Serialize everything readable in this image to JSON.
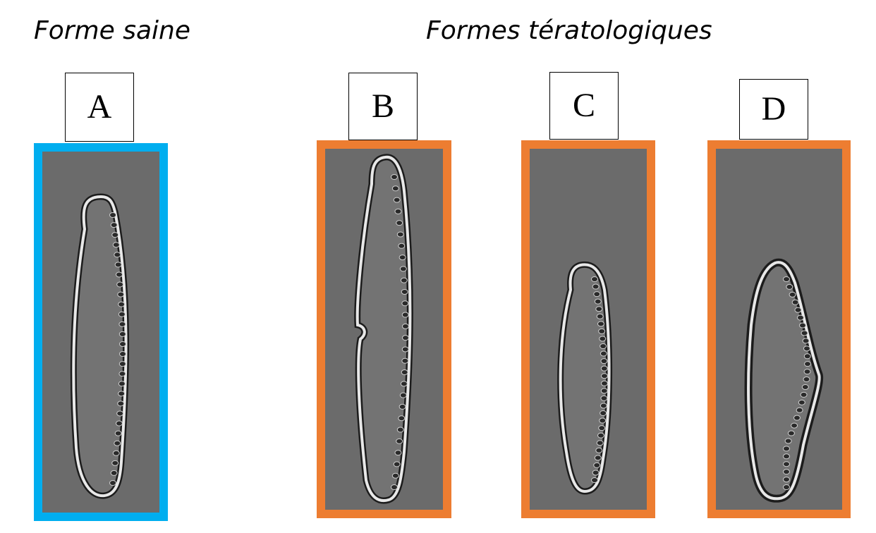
{
  "headings": {
    "healthy": "Forme saine",
    "teratological": "Formes tératologiques"
  },
  "panels": [
    {
      "label": "A",
      "frame_color": "#00AEEF",
      "icon": "healthy-diatom"
    },
    {
      "label": "B",
      "frame_color": "#ED7D31",
      "icon": "teratological-diatom-notched"
    },
    {
      "label": "C",
      "frame_color": "#ED7D31",
      "icon": "teratological-diatom-curved"
    },
    {
      "label": "D",
      "frame_color": "#ED7D31",
      "icon": "teratological-diatom-rhomboid"
    }
  ],
  "colors": {
    "micrograph_background": "#6b6b6b",
    "valve_outline": "#e8e8e8",
    "striae": "#2a2a2a"
  }
}
